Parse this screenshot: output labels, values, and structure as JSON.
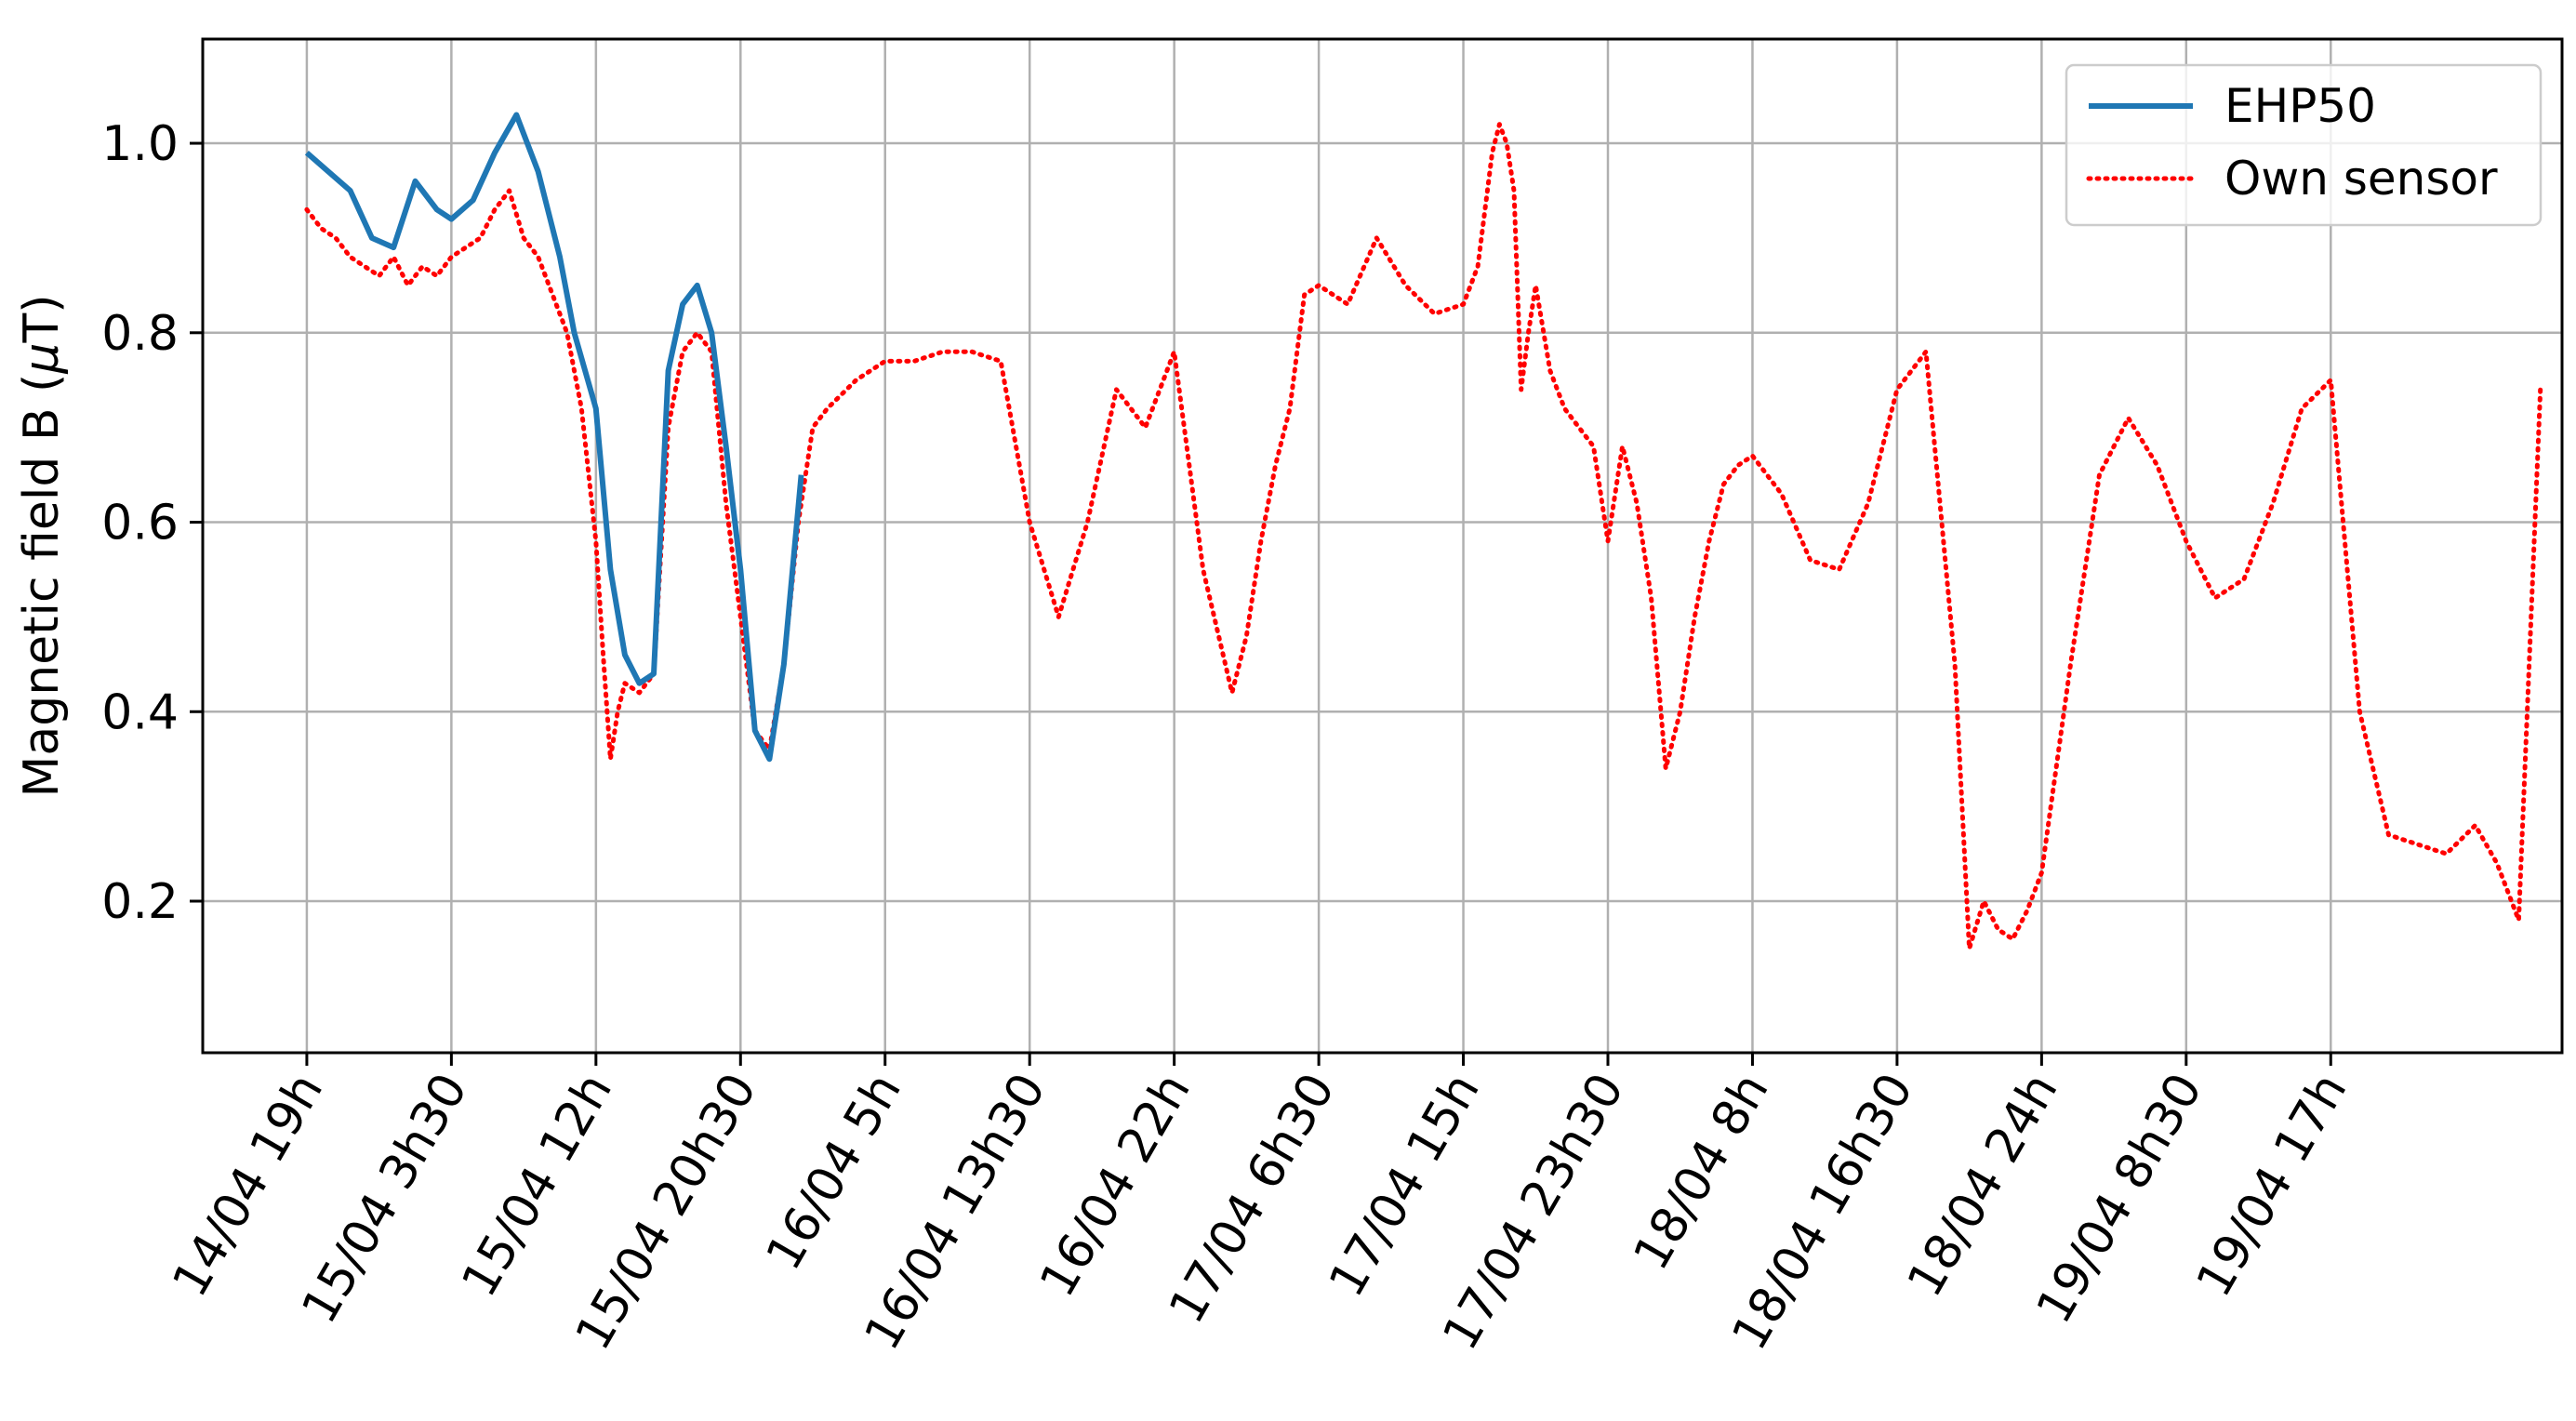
{
  "chart_data": {
    "type": "line",
    "title": "",
    "xlabel": "",
    "ylabel_text": "Magnetic field B (",
    "ylabel_symbol": "μ",
    "ylabel_unit": "T)",
    "ylim": [
      0.04,
      1.11
    ],
    "xlim": [
      -0.72,
      15.6
    ],
    "grid": true,
    "legend_position": "upper right",
    "x_tick_labels": [
      "14/04 19h",
      "15/04 3h30",
      "15/04 12h",
      "15/04 20h30",
      "16/04 5h",
      "16/04 13h30",
      "16/04 22h",
      "17/04 6h30",
      "17/04 15h",
      "17/04 23h30",
      "18/04 8h",
      "18/04 16h30",
      "18/04 24h",
      "19/04 8h30",
      "19/04 17h"
    ],
    "y_ticks": [
      0.2,
      0.4,
      0.6,
      0.8,
      1.0
    ],
    "y_tick_labels": [
      "0.2",
      "0.4",
      "0.6",
      "0.8",
      "1.0"
    ],
    "series": [
      {
        "name": "EHP50",
        "color": "#1f77b4",
        "style": "solid",
        "x": [
          0,
          0.15,
          0.3,
          0.45,
          0.6,
          0.75,
          0.9,
          1.0,
          1.15,
          1.3,
          1.45,
          1.6,
          1.75,
          1.85,
          2.0,
          2.1,
          2.2,
          2.3,
          2.4,
          2.5,
          2.6,
          2.7,
          2.8,
          2.9,
          3.0,
          3.1,
          3.2,
          3.3,
          3.42
        ],
        "y": [
          0.99,
          0.97,
          0.95,
          0.9,
          0.89,
          0.96,
          0.93,
          0.92,
          0.94,
          0.99,
          1.03,
          0.97,
          0.88,
          0.8,
          0.72,
          0.55,
          0.46,
          0.43,
          0.44,
          0.76,
          0.83,
          0.85,
          0.8,
          0.68,
          0.55,
          0.38,
          0.35,
          0.45,
          0.65
        ]
      },
      {
        "name": "Own sensor",
        "color": "#ff0000",
        "style": "dotted",
        "x": [
          0,
          0.1,
          0.2,
          0.3,
          0.4,
          0.5,
          0.6,
          0.7,
          0.8,
          0.9,
          1.0,
          1.1,
          1.2,
          1.3,
          1.4,
          1.5,
          1.6,
          1.7,
          1.8,
          1.9,
          2.0,
          2.05,
          2.1,
          2.15,
          2.2,
          2.3,
          2.4,
          2.5,
          2.6,
          2.7,
          2.8,
          2.9,
          3.0,
          3.1,
          3.2,
          3.3,
          3.4,
          3.5,
          3.6,
          3.8,
          4.0,
          4.2,
          4.4,
          4.6,
          4.8,
          5.0,
          5.2,
          5.4,
          5.6,
          5.8,
          6.0,
          6.2,
          6.4,
          6.5,
          6.6,
          6.7,
          6.8,
          6.9,
          7.0,
          7.2,
          7.4,
          7.6,
          7.8,
          8.0,
          8.1,
          8.2,
          8.25,
          8.3,
          8.35,
          8.4,
          8.45,
          8.5,
          8.6,
          8.7,
          8.8,
          8.9,
          9.0,
          9.1,
          9.2,
          9.3,
          9.4,
          9.5,
          9.6,
          9.7,
          9.8,
          9.9,
          10.0,
          10.2,
          10.4,
          10.6,
          10.8,
          11.0,
          11.2,
          11.4,
          11.5,
          11.6,
          11.7,
          11.8,
          11.9,
          12.0,
          12.2,
          12.4,
          12.6,
          12.8,
          13.0,
          13.2,
          13.4,
          13.6,
          13.8,
          14.0,
          14.2,
          14.4,
          14.6,
          14.8,
          15.0,
          15.15,
          15.3,
          15.45
        ],
        "y": [
          0.93,
          0.91,
          0.9,
          0.88,
          0.87,
          0.86,
          0.88,
          0.85,
          0.87,
          0.86,
          0.88,
          0.89,
          0.9,
          0.93,
          0.95,
          0.9,
          0.88,
          0.84,
          0.8,
          0.72,
          0.58,
          0.46,
          0.35,
          0.4,
          0.43,
          0.42,
          0.44,
          0.7,
          0.78,
          0.8,
          0.78,
          0.62,
          0.5,
          0.38,
          0.36,
          0.45,
          0.6,
          0.7,
          0.72,
          0.75,
          0.77,
          0.77,
          0.78,
          0.78,
          0.77,
          0.6,
          0.5,
          0.6,
          0.74,
          0.7,
          0.78,
          0.55,
          0.42,
          0.48,
          0.58,
          0.66,
          0.72,
          0.84,
          0.85,
          0.83,
          0.9,
          0.85,
          0.82,
          0.83,
          0.87,
          0.99,
          1.02,
          1.0,
          0.95,
          0.74,
          0.8,
          0.85,
          0.76,
          0.72,
          0.7,
          0.68,
          0.58,
          0.68,
          0.62,
          0.52,
          0.34,
          0.4,
          0.5,
          0.58,
          0.64,
          0.66,
          0.67,
          0.63,
          0.56,
          0.55,
          0.62,
          0.74,
          0.78,
          0.45,
          0.15,
          0.2,
          0.17,
          0.16,
          0.19,
          0.23,
          0.45,
          0.65,
          0.71,
          0.66,
          0.58,
          0.52,
          0.54,
          0.62,
          0.72,
          0.75,
          0.4,
          0.27,
          0.26,
          0.25,
          0.28,
          0.24,
          0.18,
          0.74
        ]
      }
    ]
  }
}
